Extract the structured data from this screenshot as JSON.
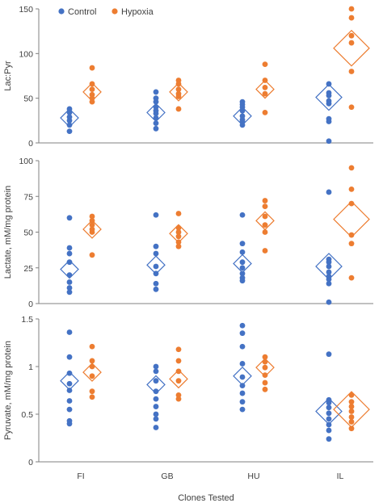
{
  "colors": {
    "control": "#4472C4",
    "hypoxia": "#ED7D31",
    "axis": "#808080",
    "text": "#404040"
  },
  "legend": [
    {
      "key": "control",
      "label": "Control",
      "icon": "circle-marker"
    },
    {
      "key": "hypoxia",
      "label": "Hypoxia",
      "icon": "circle-marker"
    }
  ],
  "x_axis_title": "Clones Tested",
  "chart_data": [
    {
      "type": "scatter",
      "ylabel": "Lac:Pyr",
      "ylim": [
        0,
        150
      ],
      "yticks": [
        0,
        50,
        100,
        150
      ],
      "ytick_labels": [
        "0",
        "50",
        "100",
        "150"
      ],
      "categories": [
        "FI",
        "GB",
        "HU",
        "IL"
      ],
      "series": [
        {
          "name": "Control",
          "key": "control",
          "points": [
            [
              38,
              34,
              29,
              25,
              20,
              13
            ],
            [
              57,
              50,
              46,
              40,
              36,
              33,
              28,
              22,
              16
            ],
            [
              46,
              43,
              40,
              36,
              30,
              26,
              24,
              20
            ],
            [
              66,
              56,
              53,
              47,
              44,
              27,
              24,
              2
            ]
          ],
          "means": [
            28,
            34,
            30,
            51
          ]
        },
        {
          "name": "Hypoxia",
          "key": "hypoxia",
          "points": [
            [
              84,
              66,
              60,
              54,
              50,
              46
            ],
            [
              70,
              66,
              60,
              55,
              52,
              38
            ],
            [
              88,
              70,
              62,
              55,
              34
            ],
            [
              150,
              140,
              120,
              112,
              80,
              40
            ]
          ],
          "means": [
            57,
            57,
            60,
            106
          ]
        }
      ]
    },
    {
      "type": "scatter",
      "ylabel": "Lactate, mM/mg protein",
      "ylim": [
        0,
        100
      ],
      "yticks": [
        0,
        25,
        50,
        75,
        100
      ],
      "ytick_labels": [
        "0",
        "25",
        "50",
        "75",
        "100"
      ],
      "categories": [
        "FI",
        "GB",
        "HU",
        "IL"
      ],
      "series": [
        {
          "name": "Control",
          "key": "control",
          "points": [
            [
              60,
              39,
              35,
              29,
              20,
              15,
              11,
              8
            ],
            [
              62,
              40,
              35,
              26,
              21,
              14,
              10
            ],
            [
              62,
              42,
              36,
              29,
              25,
              21,
              18,
              16
            ],
            [
              78,
              31,
              29,
              26,
              22,
              19,
              17,
              14,
              1
            ]
          ],
          "means": [
            24,
            27,
            28,
            26
          ]
        },
        {
          "name": "Hypoxia",
          "key": "hypoxia",
          "points": [
            [
              61,
              58,
              55,
              52,
              50,
              34
            ],
            [
              63,
              53,
              50,
              47,
              43,
              40
            ],
            [
              72,
              68,
              61,
              55,
              50,
              37
            ],
            [
              95,
              80,
              70,
              48,
              42,
              18
            ]
          ],
          "means": [
            52,
            49,
            58,
            59
          ]
        }
      ]
    },
    {
      "type": "scatter",
      "ylabel": "Pyruvate, mM/mg protein",
      "ylim": [
        0,
        1.5
      ],
      "yticks": [
        0,
        0.5,
        1,
        1.5
      ],
      "ytick_labels": [
        "0",
        "0.5",
        "1",
        "1.5"
      ],
      "categories": [
        "FI",
        "GB",
        "HU",
        "IL"
      ],
      "series": [
        {
          "name": "Control",
          "key": "control",
          "points": [
            [
              1.36,
              1.1,
              0.93,
              0.82,
              0.75,
              0.64,
              0.55,
              0.43,
              0.4
            ],
            [
              1.0,
              0.95,
              0.85,
              0.74,
              0.66,
              0.58,
              0.5,
              0.45,
              0.36
            ],
            [
              1.43,
              1.35,
              1.21,
              1.03,
              0.89,
              0.8,
              0.72,
              0.63,
              0.55
            ],
            [
              1.13,
              0.65,
              0.62,
              0.57,
              0.51,
              0.45,
              0.39,
              0.33,
              0.24
            ]
          ],
          "means": [
            0.85,
            0.81,
            0.9,
            0.53
          ]
        },
        {
          "name": "Hypoxia",
          "key": "hypoxia",
          "points": [
            [
              1.21,
              1.06,
              1.0,
              0.9,
              0.74,
              0.68
            ],
            [
              1.18,
              1.06,
              0.95,
              0.85,
              0.7,
              0.66
            ],
            [
              1.1,
              1.05,
              0.99,
              0.91,
              0.83,
              0.76
            ],
            [
              0.7,
              0.63,
              0.58,
              0.53,
              0.47,
              0.42,
              0.35
            ]
          ],
          "means": [
            0.94,
            0.87,
            0.99,
            0.55
          ]
        }
      ]
    }
  ]
}
